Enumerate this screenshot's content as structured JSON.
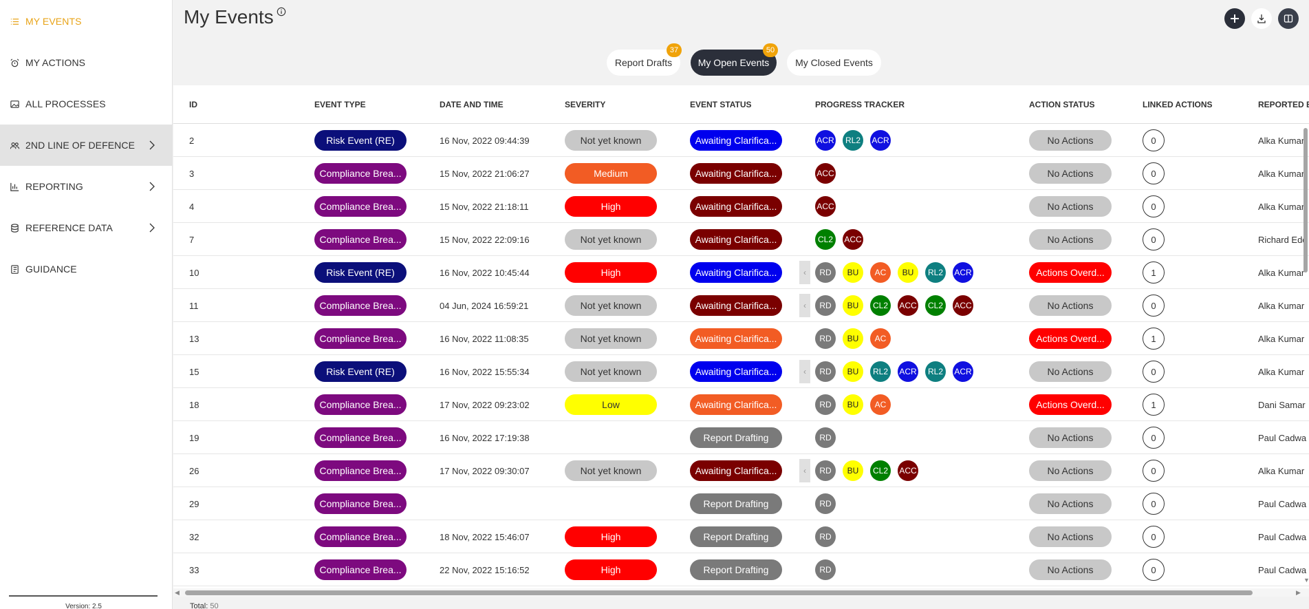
{
  "sidebar": {
    "items": [
      {
        "label": "MY EVENTS",
        "icon": "list-icon",
        "active": true,
        "chevron": false
      },
      {
        "label": "MY ACTIONS",
        "icon": "alarm-icon",
        "active": false,
        "chevron": false
      },
      {
        "label": "ALL PROCESSES",
        "icon": "image-icon",
        "active": false,
        "chevron": false
      },
      {
        "label": "2ND LINE OF DEFENCE",
        "icon": "people-icon",
        "active": false,
        "chevron": true,
        "highlight": true
      },
      {
        "label": "REPORTING",
        "icon": "bar-chart-icon",
        "active": false,
        "chevron": true
      },
      {
        "label": "REFERENCE DATA",
        "icon": "database-icon",
        "active": false,
        "chevron": true
      },
      {
        "label": "GUIDANCE",
        "icon": "book-icon",
        "active": false,
        "chevron": false
      }
    ],
    "version": "Version: 2.5"
  },
  "header": {
    "title": "My Events"
  },
  "tabs": [
    {
      "label": "Report Drafts",
      "badge": "37",
      "active": false
    },
    {
      "label": "My Open Events",
      "badge": "50",
      "active": true
    },
    {
      "label": "My Closed Events",
      "badge": "",
      "active": false
    }
  ],
  "table": {
    "columns": [
      "ID",
      "EVENT TYPE",
      "DATE AND TIME",
      "SEVERITY",
      "EVENT STATUS",
      "PROGRESS TRACKER",
      "ACTION STATUS",
      "LINKED ACTIONS",
      "REPORTED BY"
    ],
    "rows": [
      {
        "id": "2",
        "type": "Risk Event (RE)",
        "date": "16 Nov, 2022 09:44:39",
        "severity": "Not yet known",
        "status": "Awaiting Clarifica...",
        "status_color": "blue",
        "tracker": [
          "ACR",
          "RL2",
          "ACR"
        ],
        "scroll_hint": false,
        "action": "No Actions",
        "action_color": "grey",
        "linked": "0",
        "reporter": "Alka Kumar"
      },
      {
        "id": "3",
        "type": "Compliance Brea...",
        "date": "15 Nov, 2022 21:06:27",
        "severity": "Medium",
        "status": "Awaiting Clarifica...",
        "status_color": "maroon",
        "tracker": [
          "ACC"
        ],
        "scroll_hint": false,
        "action": "No Actions",
        "action_color": "grey",
        "linked": "0",
        "reporter": "Alka Kumar"
      },
      {
        "id": "4",
        "type": "Compliance Brea...",
        "date": "15 Nov, 2022 21:18:11",
        "severity": "High",
        "status": "Awaiting Clarifica...",
        "status_color": "maroon",
        "tracker": [
          "ACC"
        ],
        "scroll_hint": false,
        "action": "No Actions",
        "action_color": "grey",
        "linked": "0",
        "reporter": "Alka Kumar"
      },
      {
        "id": "7",
        "type": "Compliance Brea...",
        "date": "15 Nov, 2022 22:09:16",
        "severity": "Not yet known",
        "status": "Awaiting Clarifica...",
        "status_color": "maroon",
        "tracker": [
          "CL2",
          "ACC"
        ],
        "scroll_hint": false,
        "action": "No Actions",
        "action_color": "grey",
        "linked": "0",
        "reporter": "Richard Edc"
      },
      {
        "id": "10",
        "type": "Risk Event (RE)",
        "date": "16 Nov, 2022 10:45:44",
        "severity": "High",
        "status": "Awaiting Clarifica...",
        "status_color": "blue",
        "tracker": [
          "RD",
          "BU",
          "AC",
          "BU",
          "RL2",
          "ACR"
        ],
        "scroll_hint": true,
        "action": "Actions Overd...",
        "action_color": "red",
        "linked": "1",
        "reporter": "Alka Kumar"
      },
      {
        "id": "11",
        "type": "Compliance Brea...",
        "date": "04 Jun, 2024 16:59:21",
        "severity": "Not yet known",
        "status": "Awaiting Clarifica...",
        "status_color": "maroon",
        "tracker": [
          "RD",
          "BU",
          "CL2",
          "ACC",
          "CL2",
          "ACC"
        ],
        "scroll_hint": true,
        "action": "No Actions",
        "action_color": "grey",
        "linked": "0",
        "reporter": "Alka Kumar"
      },
      {
        "id": "13",
        "type": "Compliance Brea...",
        "date": "16 Nov, 2022 11:08:35",
        "severity": "Not yet known",
        "status": "Awaiting Clarifica...",
        "status_color": "orange",
        "tracker": [
          "RD",
          "BU",
          "AC"
        ],
        "scroll_hint": false,
        "action": "Actions Overd...",
        "action_color": "red",
        "linked": "1",
        "reporter": "Alka Kumar"
      },
      {
        "id": "15",
        "type": "Risk Event (RE)",
        "date": "16 Nov, 2022 15:55:34",
        "severity": "Not yet known",
        "status": "Awaiting Clarifica...",
        "status_color": "blue",
        "tracker": [
          "RD",
          "BU",
          "RL2",
          "ACR",
          "RL2",
          "ACR"
        ],
        "scroll_hint": true,
        "action": "No Actions",
        "action_color": "grey",
        "linked": "0",
        "reporter": "Alka Kumar"
      },
      {
        "id": "18",
        "type": "Compliance Brea...",
        "date": "17 Nov, 2022 09:23:02",
        "severity": "Low",
        "status": "Awaiting Clarifica...",
        "status_color": "orange",
        "tracker": [
          "RD",
          "BU",
          "AC"
        ],
        "scroll_hint": false,
        "action": "Actions Overd...",
        "action_color": "red",
        "linked": "1",
        "reporter": "Dani Samar"
      },
      {
        "id": "19",
        "type": "Compliance Brea...",
        "date": "16 Nov, 2022 17:19:38",
        "severity": "",
        "status": "Report Drafting",
        "status_color": "darkgrey",
        "tracker": [
          "RD"
        ],
        "scroll_hint": false,
        "action": "No Actions",
        "action_color": "grey",
        "linked": "0",
        "reporter": "Paul Cadwa"
      },
      {
        "id": "26",
        "type": "Compliance Brea...",
        "date": "17 Nov, 2022 09:30:07",
        "severity": "Not yet known",
        "status": "Awaiting Clarifica...",
        "status_color": "maroon",
        "tracker": [
          "RD",
          "BU",
          "CL2",
          "ACC"
        ],
        "scroll_hint": true,
        "action": "No Actions",
        "action_color": "grey",
        "linked": "0",
        "reporter": "Alka Kumar"
      },
      {
        "id": "29",
        "type": "Compliance Brea...",
        "date": "",
        "severity": "",
        "status": "Report Drafting",
        "status_color": "darkgrey",
        "tracker": [
          "RD"
        ],
        "scroll_hint": false,
        "action": "No Actions",
        "action_color": "grey",
        "linked": "0",
        "reporter": "Paul Cadwa"
      },
      {
        "id": "32",
        "type": "Compliance Brea...",
        "date": "18 Nov, 2022 15:46:07",
        "severity": "High",
        "status": "Report Drafting",
        "status_color": "darkgrey",
        "tracker": [
          "RD"
        ],
        "scroll_hint": false,
        "action": "No Actions",
        "action_color": "grey",
        "linked": "0",
        "reporter": "Paul Cadwa"
      },
      {
        "id": "33",
        "type": "Compliance Brea...",
        "date": "22 Nov, 2022 15:16:52",
        "severity": "High",
        "status": "Report Drafting",
        "status_color": "darkgrey",
        "tracker": [
          "RD"
        ],
        "scroll_hint": false,
        "action": "No Actions",
        "action_color": "grey",
        "linked": "0",
        "reporter": "Paul Cadwa"
      }
    ]
  },
  "footer": {
    "total_label": "Total:",
    "total_value": "50"
  },
  "colors": {
    "accent": "#e8a317",
    "risk_event": "#0b0f7a",
    "compliance": "#7d0a7f",
    "sev_not_known": "#c8c8c8",
    "sev_medium": "#f25c24",
    "sev_high": "#ff0000",
    "sev_low": "#ffff00",
    "status_blue": "#0000ee",
    "status_maroon": "#7a0000",
    "status_orange": "#f25c24",
    "status_darkgrey": "#7a7a7a",
    "action_grey": "#c8c8c8",
    "action_red": "#ff0000",
    "tracker": {
      "ACR": "#1010e0",
      "RL2": "#0e7f80",
      "ACC": "#7a0000",
      "CL2": "#008000",
      "RD": "#7a7a7a",
      "BU": "#ffff00",
      "AC": "#f25c24"
    }
  }
}
